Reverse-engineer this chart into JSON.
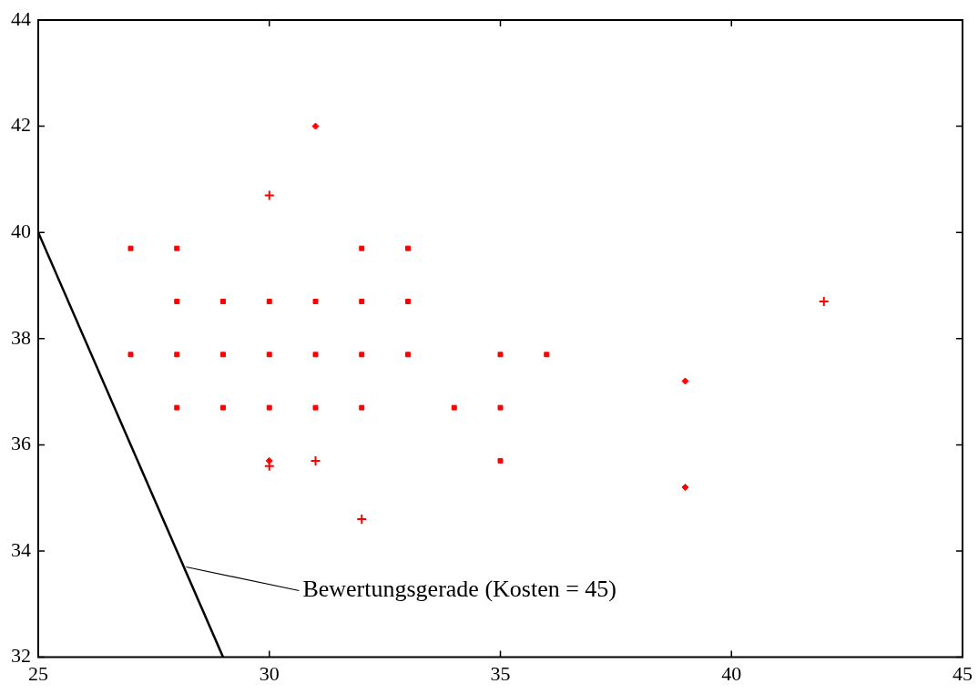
{
  "chart_data": {
    "type": "scatter",
    "series": [
      {
        "type": "scatter",
        "marker": "square",
        "color": "#ff0000",
        "x": [
          27,
          28,
          32,
          33,
          28,
          29,
          30,
          31,
          32,
          33,
          27,
          28,
          29,
          30,
          31,
          32,
          33,
          35,
          36,
          28,
          29,
          30,
          31,
          32,
          34,
          35,
          35
        ],
        "values": [
          39.7,
          39.7,
          39.7,
          39.7,
          38.7,
          38.7,
          38.7,
          38.7,
          38.7,
          38.7,
          37.7,
          37.7,
          37.7,
          37.7,
          37.7,
          37.7,
          37.7,
          37.7,
          37.7,
          36.7,
          36.7,
          36.7,
          36.7,
          36.7,
          36.7,
          36.7,
          35.7
        ]
      },
      {
        "type": "scatter",
        "marker": "diamond",
        "color": "#ff0000",
        "x": [
          31,
          30,
          39,
          39
        ],
        "values": [
          42,
          35.7,
          37.2,
          35.2
        ]
      },
      {
        "type": "scatter",
        "marker": "cross",
        "color": "#ff0000",
        "x": [
          30,
          30,
          31,
          32,
          42
        ],
        "values": [
          40.7,
          35.6,
          35.7,
          34.6,
          38.7
        ]
      },
      {
        "type": "line",
        "marker": "none",
        "line_style": "solid",
        "color": "#000000",
        "x": [
          25,
          29
        ],
        "values": [
          40,
          32
        ]
      }
    ],
    "xlim": [
      25,
      45
    ],
    "xticks": [
      25,
      30,
      35,
      40,
      45
    ],
    "ylim": [
      32,
      44
    ],
    "yticks": [
      32,
      34,
      36,
      38,
      40,
      42,
      44
    ],
    "grid": false,
    "legend": false,
    "annotations": [
      {
        "text": "Bewertungsgerade (Kosten = 45)",
        "x": 28.2,
        "y": 33.7
      }
    ]
  }
}
